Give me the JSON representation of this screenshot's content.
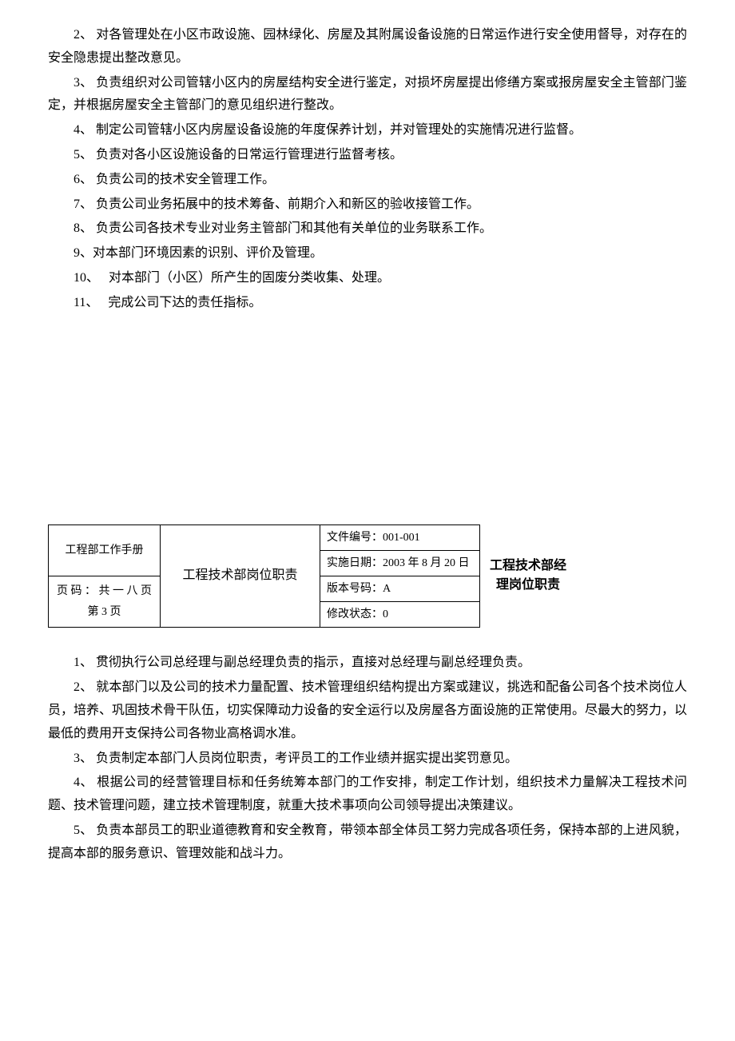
{
  "section1": {
    "items": [
      "2、 对各管理处在小区市政设施、园林绿化、房屋及其附属设备设施的日常运作进行安全使用督导，对存在的安全隐患提出整改意见。",
      "3、 负责组织对公司管辖小区内的房屋结构安全进行鉴定，对损坏房屋提出修缮方案或报房屋安全主管部门鉴定，并根据房屋安全主管部门的意见组织进行整改。",
      "4、 制定公司管辖小区内房屋设备设施的年度保养计划，并对管理处的实施情况进行监督。",
      "5、 负责对各小区设施设备的日常运行管理进行监督考核。",
      "6、 负责公司的技术安全管理工作。",
      "7、 负责公司业务拓展中的技术筹备、前期介入和新区的验收接管工作。",
      "8、 负责公司各技术专业对业务主管部门和其他有关单位的业务联系工作。",
      "9、对本部门环境因素的识别、评价及管理。",
      "10、　 对本部门（小区）所产生的固废分类收集、处理。",
      "11、　 完成公司下达的责任指标。"
    ]
  },
  "table": {
    "manual_title": "工程部工作手册",
    "page_info": "页 码 ： 共 一 八 页 第 3 页",
    "dept_title": "工程技术部岗位职责",
    "doc_number": "文件编号：001-001",
    "impl_date": "实施日期：2003 年 8 月 20 日",
    "version": "版本号码：A",
    "revision": "修改状态：0"
  },
  "side_title": "工程技术部经理岗位职责",
  "section2": {
    "items": [
      "1、 贯彻执行公司总经理与副总经理负责的指示，直接对总经理与副总经理负责。",
      "2、 就本部门以及公司的技术力量配置、技术管理组织结构提出方案或建议，挑选和配备公司各个技术岗位人员，培养、巩固技术骨干队伍，切实保障动力设备的安全运行以及房屋各方面设施的正常使用。尽最大的努力，以最低的费用开支保持公司各物业高格调水准。",
      "3、 负责制定本部门人员岗位职责，考评员工的工作业绩并据实提出奖罚意见。",
      "4、 根据公司的经营管理目标和任务统筹本部门的工作安排，制定工作计划，组织技术力量解决工程技术问题、技术管理问题，建立技术管理制度，就重大技术事项向公司领导提出决策建议。",
      "5、 负责本部员工的职业道德教育和安全教育，带领本部全体员工努力完成各项任务，保持本部的上进风貌，提高本部的服务意识、管理效能和战斗力。"
    ]
  }
}
